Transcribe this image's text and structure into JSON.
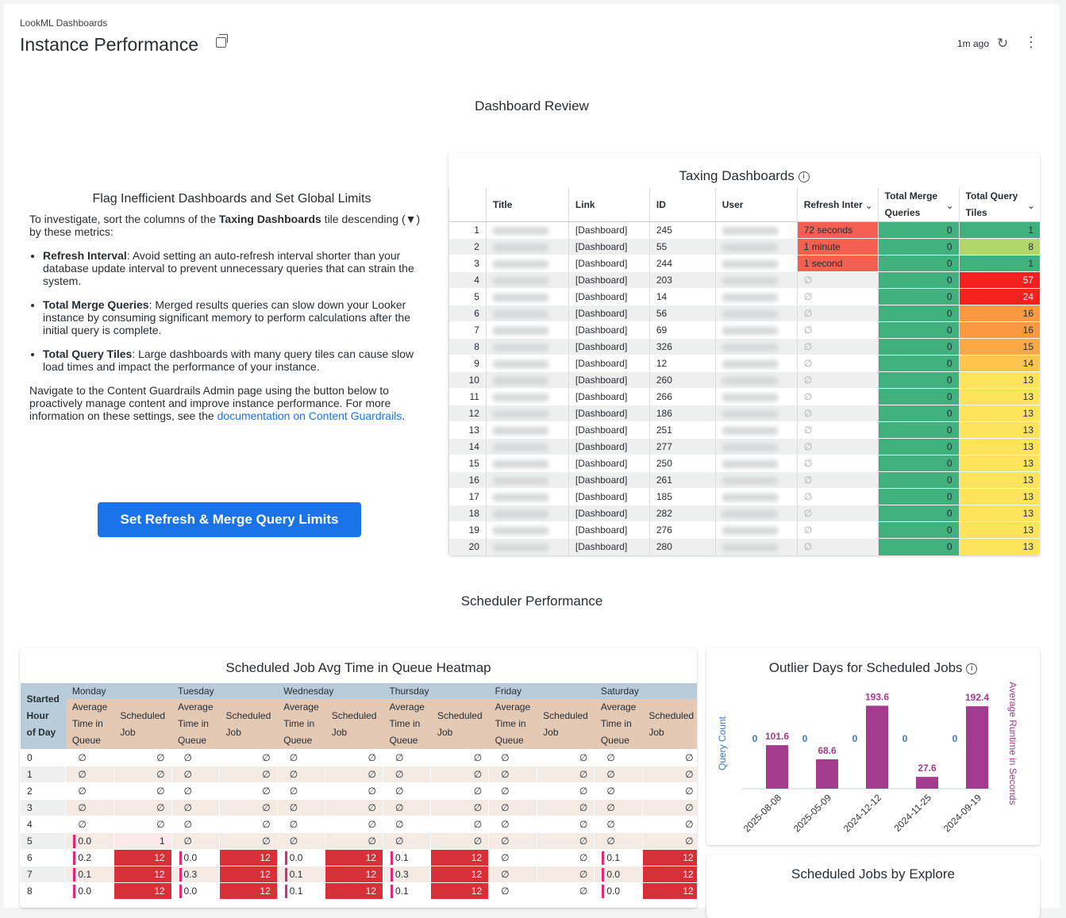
{
  "header": {
    "breadcrumb": "LookML Dashboards",
    "title": "Instance Performance",
    "updated": "1m ago"
  },
  "sections": {
    "review": "Dashboard Review",
    "scheduler": "Scheduler Performance"
  },
  "note": {
    "heading": "Flag Inefficient Dashboards and Set Global Limits",
    "intro_a": "To investigate, sort the columns of the ",
    "intro_b": "Taxing Dashboards",
    "intro_c": " tile descending (▼) by these metrics:",
    "items": [
      {
        "term": "Refresh Interval",
        "text": ": Avoid setting an auto-refresh interval shorter than your database update interval to prevent unnecessary queries that can strain the system."
      },
      {
        "term": "Total Merge Queries",
        "text": ": Merged results queries can slow down your Looker instance by consuming significant memory to perform calculations after the initial query is complete."
      },
      {
        "term": "Total Query Tiles",
        "text": ": Large dashboards with many query tiles can cause slow load times and impact the performance of your instance."
      }
    ],
    "outro": "Navigate to the Content Guardrails Admin page using the button below to proactively manage content and improve instance performance. For more information on these settings, see the ",
    "link": "documentation on Content Guardrails",
    "end": ".",
    "button": "Set Refresh & Merge Query Limits"
  },
  "taxing": {
    "title": "Taxing Dashboards",
    "columns": [
      "Title",
      "Link",
      "ID",
      "User",
      "Refresh Inter",
      "Total Merge Queries",
      "Total Query Tiles"
    ],
    "null": "∅",
    "rows": [
      [
        1,
        "[Dashboard]",
        245,
        "72 seconds",
        0,
        1
      ],
      [
        2,
        "[Dashboard]",
        55,
        "1 minute",
        0,
        8
      ],
      [
        3,
        "[Dashboard]",
        244,
        "1 second",
        0,
        1
      ],
      [
        4,
        "[Dashboard]",
        203,
        null,
        0,
        57
      ],
      [
        5,
        "[Dashboard]",
        14,
        null,
        0,
        24
      ],
      [
        6,
        "[Dashboard]",
        56,
        null,
        0,
        16
      ],
      [
        7,
        "[Dashboard]",
        69,
        null,
        0,
        16
      ],
      [
        8,
        "[Dashboard]",
        326,
        null,
        0,
        15
      ],
      [
        9,
        "[Dashboard]",
        12,
        null,
        0,
        14
      ],
      [
        10,
        "[Dashboard]",
        260,
        null,
        0,
        13
      ],
      [
        11,
        "[Dashboard]",
        266,
        null,
        0,
        13
      ],
      [
        12,
        "[Dashboard]",
        186,
        null,
        0,
        13
      ],
      [
        13,
        "[Dashboard]",
        251,
        null,
        0,
        13
      ],
      [
        14,
        "[Dashboard]",
        277,
        null,
        0,
        13
      ],
      [
        15,
        "[Dashboard]",
        250,
        null,
        0,
        13
      ],
      [
        16,
        "[Dashboard]",
        261,
        null,
        0,
        13
      ],
      [
        17,
        "[Dashboard]",
        185,
        null,
        0,
        13
      ],
      [
        18,
        "[Dashboard]",
        282,
        null,
        0,
        13
      ],
      [
        19,
        "[Dashboard]",
        276,
        null,
        0,
        13
      ],
      [
        20,
        "[Dashboard]",
        280,
        null,
        0,
        13
      ]
    ],
    "colors": {
      "refresh": "#f35f52",
      "merge": "#40b07c",
      "tiles": {
        "1": "#40b07c",
        "8": "#b3d66a",
        "57": "#f5211f",
        "24": "#f5211f",
        "16": "#fb9940",
        "15": "#fba845",
        "14": "#fdc54b",
        "13": "#fde45a"
      }
    }
  },
  "heatmap": {
    "title": "Scheduled Job Avg Time in Queue Heatmap",
    "row_header": "Started Hour of Day",
    "sub_avg": "Average Time in Queue",
    "sub_sched": "Scheduled Job",
    "days": [
      "Monday",
      "Tuesday",
      "Wednesday",
      "Thursday",
      "Friday",
      "Saturday"
    ],
    "rows": [
      {
        "hour": "0",
        "cells": [
          [
            null,
            null
          ],
          [
            null,
            null
          ],
          [
            null,
            null
          ],
          [
            null,
            null
          ],
          [
            null,
            null
          ],
          [
            null,
            null
          ]
        ]
      },
      {
        "hour": "1",
        "cells": [
          [
            null,
            null
          ],
          [
            null,
            null
          ],
          [
            null,
            null
          ],
          [
            null,
            null
          ],
          [
            null,
            null
          ],
          [
            null,
            null
          ]
        ]
      },
      {
        "hour": "2",
        "cells": [
          [
            null,
            null
          ],
          [
            null,
            null
          ],
          [
            null,
            null
          ],
          [
            null,
            null
          ],
          [
            null,
            null
          ],
          [
            null,
            null
          ]
        ]
      },
      {
        "hour": "3",
        "cells": [
          [
            null,
            null
          ],
          [
            null,
            null
          ],
          [
            null,
            null
          ],
          [
            null,
            null
          ],
          [
            null,
            null
          ],
          [
            null,
            null
          ]
        ]
      },
      {
        "hour": "4",
        "cells": [
          [
            null,
            null
          ],
          [
            null,
            null
          ],
          [
            null,
            null
          ],
          [
            null,
            null
          ],
          [
            null,
            null
          ],
          [
            null,
            null
          ]
        ]
      },
      {
        "hour": "5",
        "cells": [
          [
            "0.0",
            "1"
          ],
          [
            null,
            null
          ],
          [
            null,
            null
          ],
          [
            null,
            null
          ],
          [
            null,
            null
          ],
          [
            null,
            null
          ]
        ]
      },
      {
        "hour": "6",
        "cells": [
          [
            "0.2",
            "12"
          ],
          [
            "0.0",
            "12"
          ],
          [
            "0.0",
            "12"
          ],
          [
            "0.1",
            "12"
          ],
          [
            null,
            null
          ],
          [
            "0.1",
            "12"
          ]
        ]
      },
      {
        "hour": "7",
        "cells": [
          [
            "0.1",
            "12"
          ],
          [
            "0.3",
            "12"
          ],
          [
            "0.1",
            "12"
          ],
          [
            "0.3",
            "12"
          ],
          [
            null,
            null
          ],
          [
            "0.0",
            "12"
          ]
        ]
      },
      {
        "hour": "8",
        "cells": [
          [
            "0.0",
            "12"
          ],
          [
            "0.0",
            "12"
          ],
          [
            "0.1",
            "12"
          ],
          [
            "0.1",
            "12"
          ],
          [
            null,
            null
          ],
          [
            "0.0",
            "12"
          ]
        ]
      }
    ]
  },
  "outlier": {
    "title": "Outlier Days for Scheduled Jobs",
    "left_axis": "Query Count",
    "right_axis": "Average Runtime in Seconds",
    "chart_data": {
      "type": "bar",
      "categories": [
        "2025-08-08",
        "2025-05-09",
        "2024-12-12",
        "2024-11-25",
        "2024-09-19"
      ],
      "series": [
        {
          "name": "Query Count",
          "values": [
            0,
            0,
            0,
            0,
            0
          ],
          "color": "#3a78c0"
        },
        {
          "name": "Average Runtime in Seconds",
          "values": [
            101.6,
            68.6,
            193.6,
            27.6,
            192.4
          ],
          "color": "#a43b8f"
        }
      ],
      "ylim": [
        0,
        200
      ]
    }
  },
  "explore": {
    "title": "Scheduled Jobs by Explore"
  }
}
